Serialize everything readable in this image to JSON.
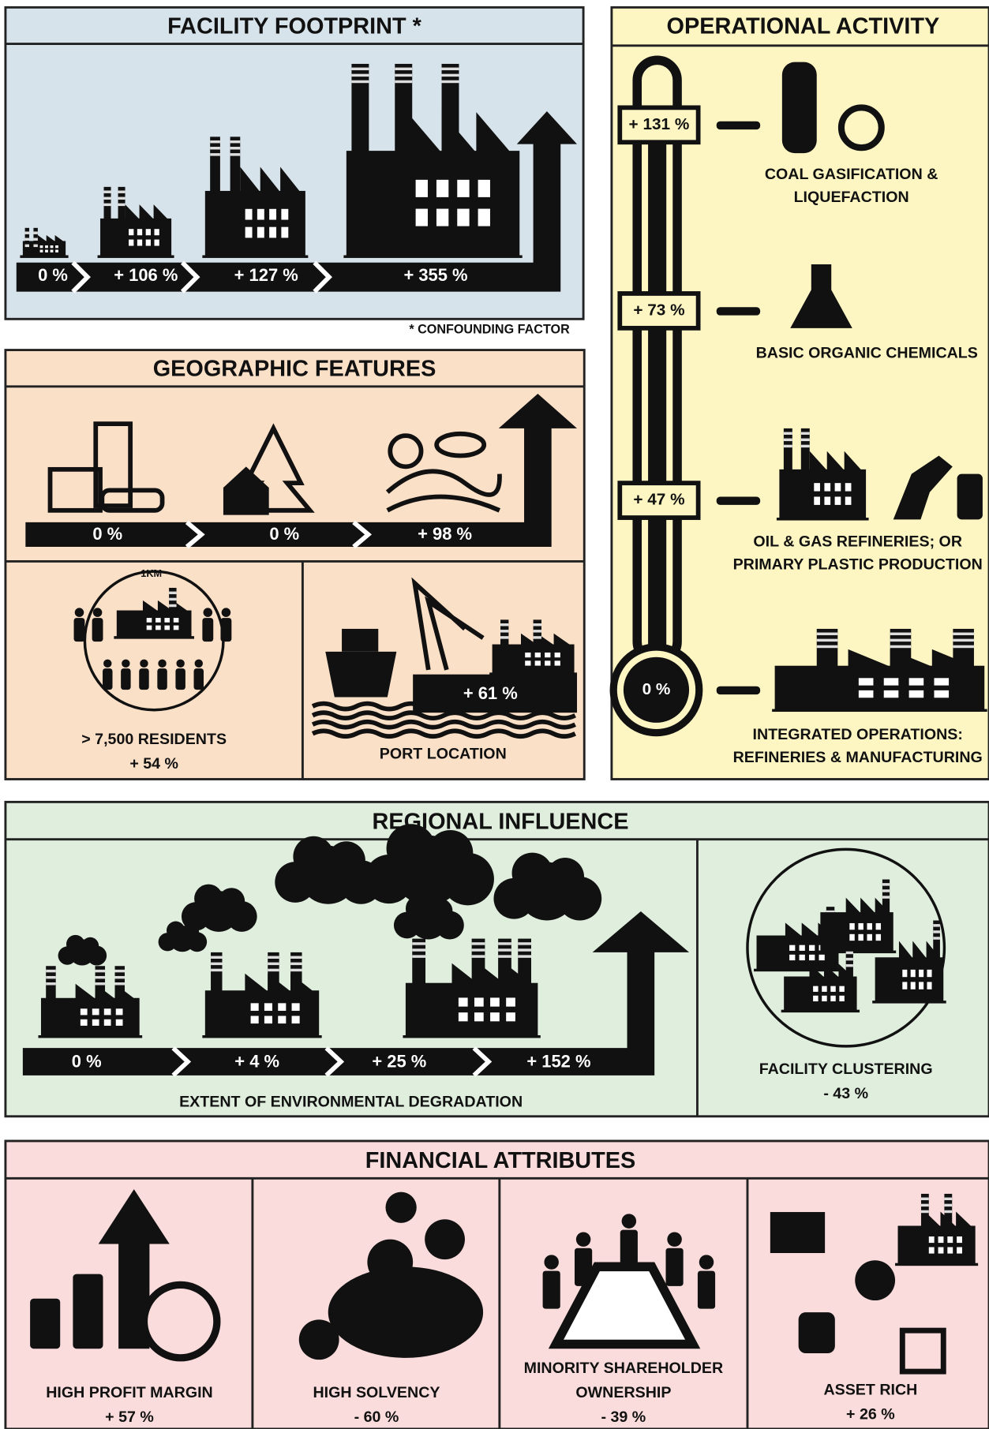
{
  "facility_footprint": {
    "title": "FACILITY FOOTPRINT *",
    "steps": [
      "0 %",
      "+ 106 %",
      "+ 127 %",
      "+ 355 %"
    ],
    "footnote": "* CONFOUNDING FACTOR"
  },
  "operational_activity": {
    "title": "OPERATIONAL ACTIVITY",
    "levels": [
      {
        "value": "+ 131 %",
        "label": [
          "COAL GASIFICATION &",
          "LIQUEFACTION"
        ]
      },
      {
        "value": "+ 73 %",
        "label": [
          "BASIC ORGANIC CHEMICALS"
        ]
      },
      {
        "value": "+ 47 %",
        "label": [
          "OIL & GAS REFINERIES; OR",
          "PRIMARY PLASTIC PRODUCTION"
        ]
      },
      {
        "value": "0 %",
        "label": [
          "INTEGRATED OPERATIONS:",
          "REFINERIES & MANUFACTURING"
        ]
      }
    ]
  },
  "geographic_features": {
    "title": "GEOGRAPHIC FEATURES",
    "steps": [
      "0 %",
      "0 %",
      "+ 98 %"
    ],
    "residents": {
      "radius": "1KM",
      "label": "> 7,500 RESIDENTS",
      "value": "+ 54 %"
    },
    "port": {
      "label": "PORT LOCATION",
      "value": "+ 61 %"
    }
  },
  "regional_influence": {
    "title": "REGIONAL INFLUENCE",
    "steps": [
      "0 %",
      "+ 4 %",
      "+ 25 %",
      "+ 152 %"
    ],
    "caption": "EXTENT OF ENVIRONMENTAL DEGRADATION",
    "clustering": {
      "label": "FACILITY CLUSTERING",
      "value": "- 43 %"
    }
  },
  "financial_attributes": {
    "title": "FINANCIAL ATTRIBUTES",
    "items": [
      {
        "label": [
          "HIGH PROFIT MARGIN"
        ],
        "value": "+ 57 %"
      },
      {
        "label": [
          "HIGH SOLVENCY"
        ],
        "value": "- 60 %"
      },
      {
        "label": [
          "MINORITY SHAREHOLDER",
          "OWNERSHIP"
        ],
        "value": "- 39 %"
      },
      {
        "label": [
          "ASSET RICH"
        ],
        "value": "+ 26 %"
      }
    ]
  }
}
